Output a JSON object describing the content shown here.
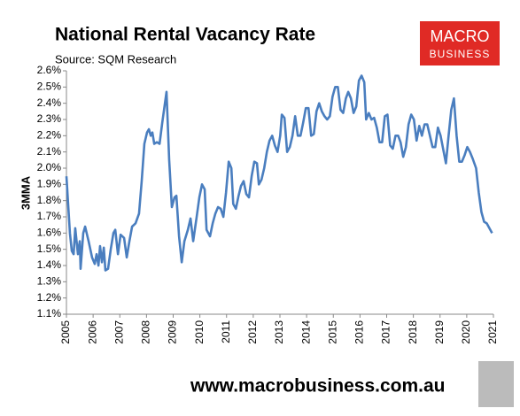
{
  "chart_data": {
    "type": "line",
    "title": "National Rental Vacancy Rate",
    "subtitle": "Source: SQM Research",
    "y_label": "3MMA",
    "color": "#4a7ebf",
    "x": [
      2005.0,
      2005.13,
      2005.2,
      2005.27,
      2005.33,
      2005.43,
      2005.5,
      2005.53,
      2005.63,
      2005.7,
      2005.83,
      2005.96,
      2006.06,
      2006.13,
      2006.2,
      2006.26,
      2006.33,
      2006.4,
      2006.46,
      2006.56,
      2006.66,
      2006.76,
      2006.83,
      2006.93,
      2007.03,
      2007.16,
      2007.26,
      2007.36,
      2007.46,
      2007.59,
      2007.72,
      2007.82,
      2007.92,
      2008.02,
      2008.09,
      2008.16,
      2008.22,
      2008.29,
      2008.39,
      2008.49,
      2008.59,
      2008.75,
      2008.85,
      2008.95,
      2009.05,
      2009.12,
      2009.22,
      2009.32,
      2009.42,
      2009.55,
      2009.65,
      2009.75,
      2009.88,
      2009.98,
      2010.08,
      2010.18,
      2010.25,
      2010.38,
      2010.48,
      2010.58,
      2010.68,
      2010.78,
      2010.88,
      2010.98,
      2011.08,
      2011.18,
      2011.25,
      2011.35,
      2011.45,
      2011.54,
      2011.64,
      2011.74,
      2011.84,
      2011.94,
      2012.04,
      2012.14,
      2012.21,
      2012.31,
      2012.41,
      2012.51,
      2012.61,
      2012.71,
      2012.81,
      2012.91,
      2013.01,
      2013.07,
      2013.17,
      2013.27,
      2013.37,
      2013.47,
      2013.57,
      2013.67,
      2013.77,
      2013.87,
      2013.97,
      2014.07,
      2014.17,
      2014.27,
      2014.37,
      2014.47,
      2014.57,
      2014.67,
      2014.77,
      2014.87,
      2014.97,
      2015.07,
      2015.17,
      2015.27,
      2015.37,
      2015.47,
      2015.56,
      2015.66,
      2015.76,
      2015.86,
      2015.96,
      2016.06,
      2016.16,
      2016.23,
      2016.33,
      2016.43,
      2016.53,
      2016.63,
      2016.73,
      2016.83,
      2016.93,
      2017.03,
      2017.13,
      2017.23,
      2017.33,
      2017.43,
      2017.52,
      2017.62,
      2017.72,
      2017.82,
      2017.92,
      2018.02,
      2018.12,
      2018.22,
      2018.32,
      2018.42,
      2018.52,
      2018.62,
      2018.72,
      2018.82,
      2018.92,
      2019.02,
      2019.22,
      2019.32,
      2019.42,
      2019.52,
      2019.62,
      2019.72,
      2019.82,
      2019.92,
      2020.02,
      2020.12,
      2020.22,
      2020.35,
      2020.45,
      2020.55,
      2020.65,
      2020.75,
      2020.85,
      2020.95
    ],
    "values": [
      1.95,
      1.6,
      1.49,
      1.47,
      1.63,
      1.47,
      1.55,
      1.38,
      1.6,
      1.64,
      1.55,
      1.45,
      1.41,
      1.47,
      1.4,
      1.52,
      1.42,
      1.51,
      1.37,
      1.38,
      1.5,
      1.6,
      1.62,
      1.47,
      1.59,
      1.57,
      1.45,
      1.55,
      1.64,
      1.66,
      1.72,
      1.92,
      2.15,
      2.22,
      2.24,
      2.2,
      2.22,
      2.15,
      2.16,
      2.15,
      2.28,
      2.47,
      2.05,
      1.76,
      1.82,
      1.83,
      1.58,
      1.42,
      1.55,
      1.62,
      1.69,
      1.55,
      1.7,
      1.82,
      1.9,
      1.87,
      1.62,
      1.58,
      1.66,
      1.72,
      1.76,
      1.75,
      1.7,
      1.85,
      2.04,
      2.0,
      1.78,
      1.75,
      1.83,
      1.89,
      1.92,
      1.84,
      1.82,
      1.95,
      2.04,
      2.03,
      1.9,
      1.93,
      2.0,
      2.1,
      2.17,
      2.2,
      2.14,
      2.1,
      2.2,
      2.33,
      2.31,
      2.1,
      2.13,
      2.2,
      2.32,
      2.2,
      2.2,
      2.28,
      2.37,
      2.37,
      2.2,
      2.21,
      2.35,
      2.4,
      2.35,
      2.32,
      2.3,
      2.32,
      2.44,
      2.5,
      2.5,
      2.36,
      2.34,
      2.43,
      2.47,
      2.43,
      2.34,
      2.38,
      2.54,
      2.57,
      2.53,
      2.3,
      2.34,
      2.3,
      2.31,
      2.25,
      2.16,
      2.16,
      2.32,
      2.33,
      2.14,
      2.12,
      2.2,
      2.2,
      2.16,
      2.07,
      2.13,
      2.27,
      2.33,
      2.3,
      2.17,
      2.26,
      2.2,
      2.27,
      2.27,
      2.2,
      2.13,
      2.13,
      2.25,
      2.2,
      2.03,
      2.2,
      2.36,
      2.43,
      2.2,
      2.04,
      2.04,
      2.08,
      2.13,
      2.1,
      2.06,
      2.0,
      1.85,
      1.73,
      1.67,
      1.66,
      1.63,
      1.6
    ],
    "xlim": [
      2005,
      2021
    ],
    "xticks": [
      2005,
      2006,
      2007,
      2008,
      2009,
      2010,
      2011,
      2012,
      2013,
      2014,
      2015,
      2016,
      2017,
      2018,
      2019,
      2020,
      2021
    ],
    "ylim": [
      1.1,
      2.6
    ],
    "yticks": [
      {
        "value": 1.1,
        "label": "1.1%"
      },
      {
        "value": 1.2,
        "label": "1.2%"
      },
      {
        "value": 1.3,
        "label": "1.3%"
      },
      {
        "value": 1.4,
        "label": "1.4%"
      },
      {
        "value": 1.5,
        "label": "1.5%"
      },
      {
        "value": 1.6,
        "label": "1.6%"
      },
      {
        "value": 1.7,
        "label": "1.7%"
      },
      {
        "value": 1.8,
        "label": "1.8%"
      },
      {
        "value": 1.9,
        "label": "1.9%"
      },
      {
        "value": 2.0,
        "label": "2.0%"
      },
      {
        "value": 2.1,
        "label": "2.1%"
      },
      {
        "value": 2.2,
        "label": "2.2%"
      },
      {
        "value": 2.3,
        "label": "2.3%"
      },
      {
        "value": 2.4,
        "label": "2.4%"
      },
      {
        "value": 2.5,
        "label": "2.5%"
      },
      {
        "value": 2.6,
        "label": "2.6%"
      }
    ],
    "grid": false
  },
  "logo": {
    "line1": "MACRO",
    "line2": "BUSINESS"
  },
  "footer": "www.macrobusiness.com.au"
}
